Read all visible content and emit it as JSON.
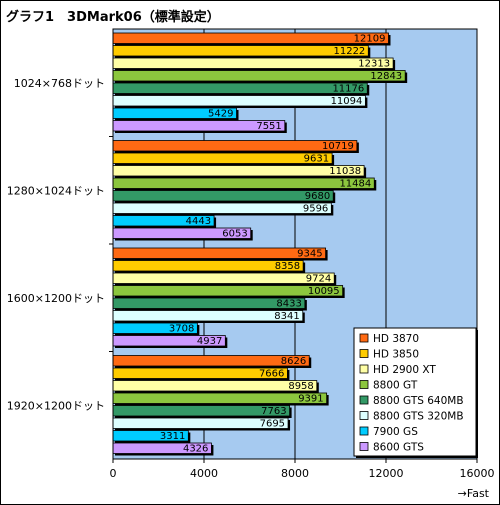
{
  "title": "グラフ1　3DMark06（標準設定）",
  "chart_data": {
    "type": "bar",
    "orientation": "horizontal",
    "title": "グラフ1　3DMark06（標準設定）",
    "xlabel": "→Fast",
    "xlim": [
      0,
      16000
    ],
    "xticks": [
      0,
      4000,
      8000,
      12000,
      16000
    ],
    "grid": true,
    "legend_position": "bottom-right",
    "categories": [
      "1024×768ドット",
      "1280×1024ドット",
      "1600×1200ドット",
      "1920×1200ドット"
    ],
    "series": [
      {
        "name": "HD 3870",
        "color": "#ff6a13",
        "values": [
          12109,
          10719,
          9345,
          8626
        ]
      },
      {
        "name": "HD 3850",
        "color": "#ffcc00",
        "values": [
          11222,
          9631,
          8358,
          7666
        ]
      },
      {
        "name": "HD 2900 XT",
        "color": "#ffffa6",
        "values": [
          12313,
          11038,
          9724,
          8958
        ]
      },
      {
        "name": "8800 GT",
        "color": "#8cc63e",
        "values": [
          12843,
          11484,
          10095,
          9391
        ]
      },
      {
        "name": "8800 GTS 640MB",
        "color": "#339966",
        "values": [
          11176,
          9680,
          8433,
          7763
        ]
      },
      {
        "name": "8800 GTS 320MB",
        "color": "#ddffff",
        "values": [
          11094,
          9596,
          8341,
          7695
        ]
      },
      {
        "name": "7900 GS",
        "color": "#00ccff",
        "values": [
          5429,
          4443,
          3708,
          3311
        ]
      },
      {
        "name": "8600 GTS",
        "color": "#cc99ff",
        "values": [
          7551,
          6053,
          4937,
          4326
        ]
      }
    ]
  }
}
